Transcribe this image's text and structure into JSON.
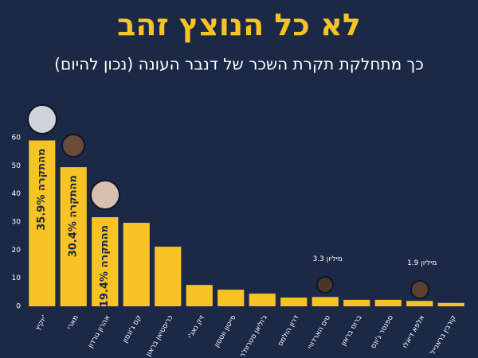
{
  "chart_data": {
    "type": "bar",
    "title": "לא כל הנוצץ זהב",
    "subtitle": "כך מתחלקת תקרת השכר של דנבר העונה (נכון להיום)",
    "categories": [
      "יוקיץ'",
      "מארי",
      "אהרון גורדון",
      "קם ג'ונסון",
      "כריסטיאן בראון",
      "זיק נאג'י",
      "פייטון ווטסון",
      "ג'וליאן סטרות'ר",
      "דרון הולמס",
      "טים הארדוויי",
      "ברוס בראון",
      "ספנסר ג'ונס",
      "אלפא דיאלו",
      "קורבין בראנייל"
    ],
    "values": [
      59,
      49.5,
      31.7,
      29.7,
      21.2,
      7.6,
      5.9,
      4.5,
      3.1,
      3.3,
      2.3,
      2.3,
      1.9,
      1.2
    ],
    "color": "#f7c325",
    "annotations": [
      "35.9% מהתקרה",
      "30.4% מהתקרה",
      "19.4% מהתקרה",
      "3.3 מיליון",
      "1.9 מיליון"
    ],
    "ylim": [
      0,
      60
    ],
    "yticks": [
      0,
      10,
      20,
      30,
      40,
      50,
      60
    ],
    "grid": false
  }
}
